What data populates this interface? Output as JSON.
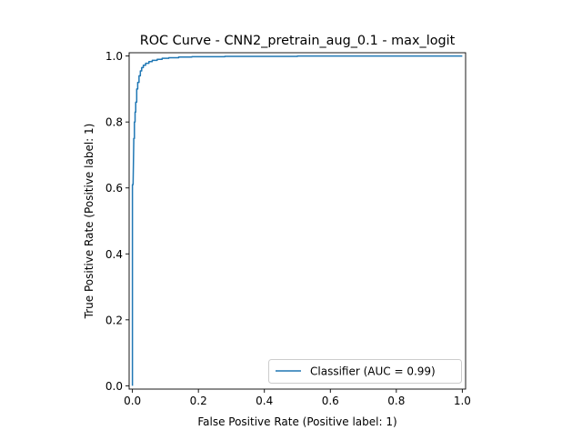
{
  "chart_data": {
    "type": "line",
    "title": "ROC Curve - CNN2_pretrain_aug_0.1 - max_logit",
    "xlabel": "False Positive Rate (Positive label: 1)",
    "ylabel": "True Positive Rate (Positive label: 1)",
    "xlim": [
      -0.01,
      1.01
    ],
    "ylim": [
      -0.01,
      1.01
    ],
    "x_ticks": [
      0.0,
      0.2,
      0.4,
      0.6,
      0.8,
      1.0
    ],
    "y_ticks": [
      0.0,
      0.2,
      0.4,
      0.6,
      0.8,
      1.0
    ],
    "x_tick_labels": [
      "0.0",
      "0.2",
      "0.4",
      "0.6",
      "0.8",
      "1.0"
    ],
    "y_tick_labels": [
      "0.0",
      "0.2",
      "0.4",
      "0.6",
      "0.8",
      "1.0"
    ],
    "grid": false,
    "legend_position": "lower right",
    "series": [
      {
        "name": "Classifier (AUC = 0.99)",
        "color": "#1f77b4",
        "x": [
          0.0,
          0.0,
          0.002,
          0.004,
          0.004,
          0.006,
          0.006,
          0.008,
          0.008,
          0.01,
          0.01,
          0.013,
          0.013,
          0.016,
          0.016,
          0.02,
          0.02,
          0.024,
          0.024,
          0.028,
          0.028,
          0.033,
          0.033,
          0.04,
          0.04,
          0.05,
          0.05,
          0.06,
          0.06,
          0.075,
          0.075,
          0.09,
          0.09,
          0.11,
          0.11,
          0.14,
          0.14,
          0.18,
          0.18,
          0.28,
          0.28,
          0.5,
          0.5,
          1.0
        ],
        "y": [
          0.0,
          0.61,
          0.61,
          0.74,
          0.75,
          0.75,
          0.8,
          0.8,
          0.83,
          0.83,
          0.86,
          0.86,
          0.9,
          0.9,
          0.92,
          0.92,
          0.94,
          0.94,
          0.955,
          0.955,
          0.965,
          0.965,
          0.972,
          0.972,
          0.978,
          0.978,
          0.983,
          0.983,
          0.987,
          0.987,
          0.99,
          0.99,
          0.993,
          0.993,
          0.995,
          0.995,
          0.997,
          0.997,
          0.998,
          0.998,
          0.999,
          0.999,
          1.0,
          1.0
        ]
      }
    ]
  }
}
